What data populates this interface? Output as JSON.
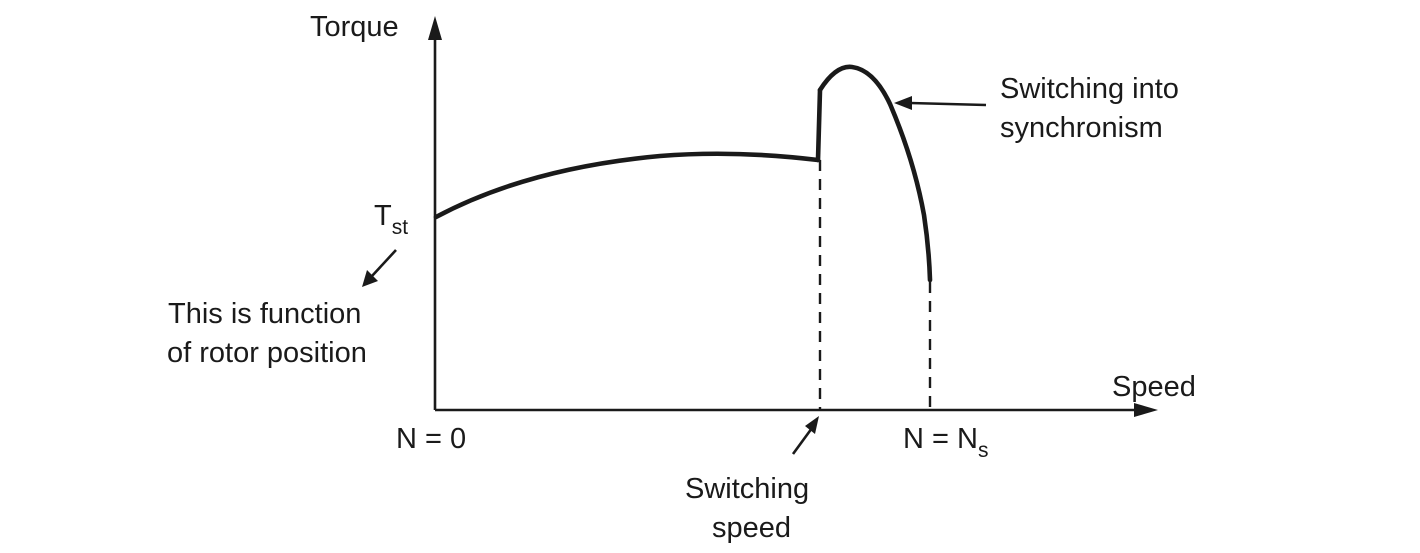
{
  "axes": {
    "y_label": "Torque",
    "x_label": "Speed"
  },
  "labels": {
    "t_st_main": "T",
    "t_st_sub": "st",
    "rotor_note_line1": "This is function",
    "rotor_note_line2": "of rotor position",
    "n_zero": "N = 0",
    "n_sync_main": "N = N",
    "n_sync_sub": "s",
    "switching_speed_line1": "Switching",
    "switching_speed_line2": "speed",
    "sync_note_line1": "Switching into",
    "sync_note_line2": "synchronism"
  }
}
